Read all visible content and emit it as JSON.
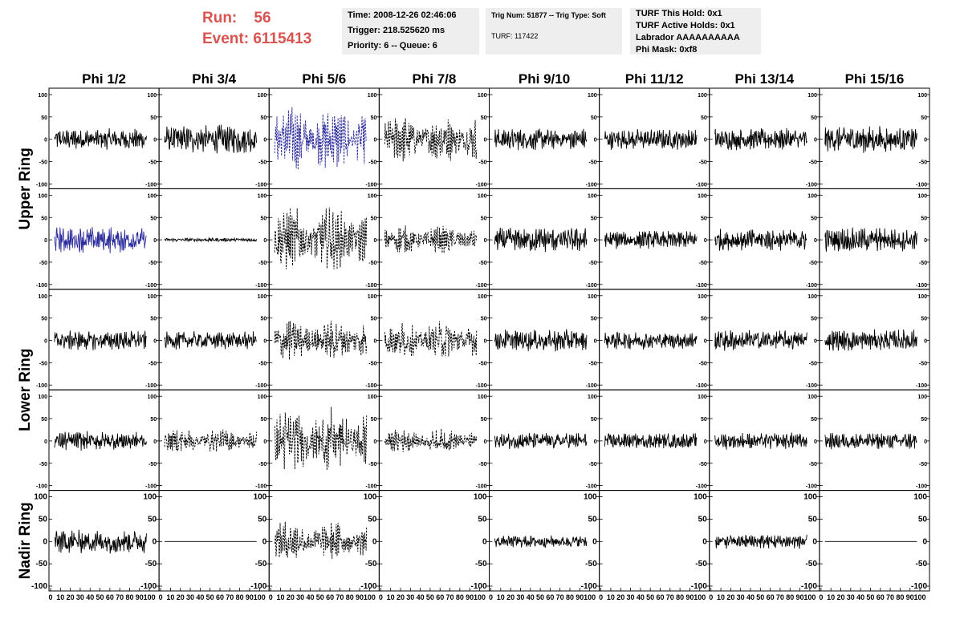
{
  "header": {
    "run_label": "Run:",
    "run_value": "56",
    "event_label": "Event:",
    "event_value": "6115413",
    "time": "Time: 2008-12-26 02:46:06",
    "trigger": "Trigger: 218.525620 ms",
    "priority": "Priority: 6 -- Queue: 6",
    "trig_num": "Trig Num: 51877 -- Trig Type: Soft",
    "turf": "TURF: 117422",
    "turf_this_hold": "TURF This Hold: 0x1",
    "turf_active_holds": "TURF Active Holds: 0x1",
    "labrador": "Labrador AAAAAAAAAA",
    "phi_mask": "Phi Mask: 0xf8"
  },
  "chart_data": {
    "type": "line",
    "columns": [
      "Phi 1/2",
      "Phi 3/4",
      "Phi 5/6",
      "Phi 7/8",
      "Phi 9/10",
      "Phi 11/12",
      "Phi 13/14",
      "Phi 15/16"
    ],
    "row_labels": [
      {
        "label": "Upper Ring",
        "rows": [
          0,
          1
        ]
      },
      {
        "label": "Lower Ring",
        "rows": [
          2,
          3
        ]
      },
      {
        "label": "Nadir Ring",
        "rows": [
          4
        ]
      }
    ],
    "xlim": [
      0,
      100
    ],
    "ylim": [
      -100,
      100
    ],
    "x_ticks": [
      "0",
      "10",
      "20",
      "30",
      "40",
      "50",
      "60",
      "70",
      "80",
      "90",
      "100"
    ],
    "y_ticks": [
      "100",
      "50",
      "0",
      "-50",
      "-100"
    ],
    "colors": {
      "black": "#000000",
      "highlight": "#2b2b9b",
      "header": "#d9534f"
    },
    "panels": [
      [
        {
          "amp": 18,
          "style": "solid",
          "color": "black"
        },
        {
          "amp": 24,
          "style": "solid",
          "color": "black"
        },
        {
          "amp": 55,
          "style": "dashed",
          "color": "highlight",
          "envelope": true
        },
        {
          "amp": 40,
          "style": "dashed",
          "color": "black",
          "envelope": true
        },
        {
          "amp": 18,
          "style": "solid",
          "color": "black"
        },
        {
          "amp": 17,
          "style": "solid",
          "color": "black"
        },
        {
          "amp": 18,
          "style": "solid",
          "color": "black"
        },
        {
          "amp": 22,
          "style": "solid",
          "color": "black"
        }
      ],
      [
        {
          "amp": 22,
          "style": "solid",
          "color": "highlight"
        },
        {
          "amp": 3,
          "style": "solid",
          "color": "black"
        },
        {
          "amp": 55,
          "style": "dashed",
          "color": "black",
          "envelope": true
        },
        {
          "amp": 25,
          "style": "dashed",
          "color": "black",
          "envelope": true
        },
        {
          "amp": 20,
          "style": "solid",
          "color": "black"
        },
        {
          "amp": 15,
          "style": "solid",
          "color": "black"
        },
        {
          "amp": 18,
          "style": "solid",
          "color": "black"
        },
        {
          "amp": 20,
          "style": "solid",
          "color": "black"
        }
      ],
      [
        {
          "amp": 16,
          "style": "solid",
          "color": "black"
        },
        {
          "amp": 15,
          "style": "solid",
          "color": "black"
        },
        {
          "amp": 35,
          "style": "dashed",
          "color": "black",
          "envelope": true
        },
        {
          "amp": 32,
          "style": "dashed",
          "color": "black",
          "envelope": true
        },
        {
          "amp": 18,
          "style": "solid",
          "color": "black"
        },
        {
          "amp": 15,
          "style": "solid",
          "color": "black"
        },
        {
          "amp": 18,
          "style": "solid",
          "color": "black"
        },
        {
          "amp": 18,
          "style": "solid",
          "color": "black"
        }
      ],
      [
        {
          "amp": 16,
          "style": "solid",
          "color": "black"
        },
        {
          "amp": 22,
          "style": "dashed",
          "color": "black",
          "envelope": true
        },
        {
          "amp": 55,
          "style": "dashed",
          "color": "black",
          "envelope": true
        },
        {
          "amp": 20,
          "style": "dashed",
          "color": "black",
          "envelope": true
        },
        {
          "amp": 14,
          "style": "solid",
          "color": "black"
        },
        {
          "amp": 13,
          "style": "solid",
          "color": "black"
        },
        {
          "amp": 14,
          "style": "solid",
          "color": "black"
        },
        {
          "amp": 14,
          "style": "solid",
          "color": "black"
        }
      ],
      [
        {
          "amp": 20,
          "style": "solid",
          "color": "black"
        },
        {
          "amp": 0,
          "style": "solid",
          "color": "black"
        },
        {
          "amp": 35,
          "style": "dashed",
          "color": "black",
          "envelope": true
        },
        null,
        {
          "amp": 10,
          "style": "solid",
          "color": "black"
        },
        null,
        {
          "amp": 12,
          "style": "solid",
          "color": "black"
        },
        {
          "amp": 0,
          "style": "solid",
          "color": "black"
        }
      ]
    ]
  }
}
